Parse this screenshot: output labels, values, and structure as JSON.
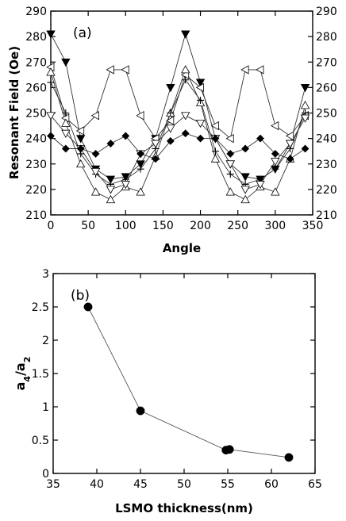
{
  "chart_data": [
    {
      "type": "line",
      "panel_label": "(a)",
      "xlabel": "Angle",
      "ylabel": "Resonant Field (Oe)",
      "xlim": [
        0,
        350
      ],
      "ylim": [
        210,
        290
      ],
      "x_ticks": [
        0,
        50,
        100,
        150,
        200,
        250,
        300,
        350
      ],
      "y_ticks": [
        210,
        220,
        230,
        240,
        250,
        260,
        270,
        280,
        290
      ],
      "right_axis_labels": true,
      "grid": false,
      "series": [
        {
          "marker": "filled-triangle-down",
          "x": [
            0,
            20,
            40,
            60,
            80,
            100,
            120,
            140,
            160,
            180,
            200,
            220,
            240,
            260,
            280,
            300,
            320,
            340
          ],
          "y": [
            281,
            270,
            240,
            228,
            224,
            225,
            230,
            240,
            260,
            281,
            262,
            240,
            230,
            225,
            224,
            228,
            238,
            260
          ]
        },
        {
          "marker": "open-triangle-left",
          "x": [
            0,
            20,
            40,
            60,
            80,
            100,
            120,
            140,
            160,
            180,
            200,
            220,
            240,
            260,
            280,
            300,
            320,
            340
          ],
          "y": [
            268,
            248,
            243,
            249,
            267,
            267,
            249,
            240,
            247,
            265,
            260,
            245,
            240,
            267,
            267,
            245,
            241,
            249
          ]
        },
        {
          "marker": "open-triangle-up",
          "x": [
            0,
            20,
            40,
            60,
            80,
            100,
            120,
            140,
            160,
            180,
            200,
            220,
            240,
            260,
            280,
            300,
            320,
            340
          ],
          "y": [
            266,
            246,
            230,
            219,
            216,
            221,
            219,
            233,
            250,
            267,
            254,
            232,
            219,
            216,
            221,
            219,
            232,
            253
          ]
        },
        {
          "marker": "plus",
          "x": [
            0,
            20,
            40,
            60,
            80,
            100,
            120,
            140,
            160,
            180,
            200,
            220,
            240,
            260,
            280,
            300,
            320,
            340
          ],
          "y": [
            262,
            250,
            234,
            226,
            222,
            224,
            228,
            236,
            250,
            263,
            255,
            235,
            226,
            222,
            224,
            228,
            236,
            250
          ]
        },
        {
          "marker": "open-triangle-down",
          "x": [
            0,
            20,
            40,
            60,
            80,
            100,
            120,
            140,
            160,
            180,
            200,
            220,
            240,
            260,
            280,
            300,
            320,
            340
          ],
          "y": [
            249,
            242,
            236,
            227,
            220,
            222,
            234,
            238,
            244,
            249,
            246,
            240,
            230,
            220,
            222,
            231,
            238,
            248
          ]
        },
        {
          "marker": "filled-diamond",
          "x": [
            0,
            20,
            40,
            60,
            80,
            100,
            120,
            140,
            160,
            180,
            200,
            220,
            240,
            260,
            280,
            300,
            320,
            340
          ],
          "y": [
            241,
            236,
            236,
            234,
            238,
            241,
            234,
            232,
            239,
            242,
            240,
            240,
            234,
            236,
            240,
            234,
            232,
            236
          ]
        }
      ]
    },
    {
      "type": "line",
      "panel_label": "(b)",
      "xlabel": "LSMO thickness(nm)",
      "ylabel": "a4/a2",
      "ylabel_main": "a",
      "ylabel_sub1": "4",
      "ylabel_slash": "/a",
      "ylabel_sub2": "2",
      "xlim": [
        35,
        65
      ],
      "ylim": [
        0,
        3
      ],
      "x_ticks": [
        35,
        40,
        45,
        50,
        55,
        60,
        65
      ],
      "y_ticks": [
        0,
        0.5,
        1,
        1.5,
        2,
        2.5,
        3
      ],
      "grid": false,
      "series": [
        {
          "marker": "filled-circle",
          "x": [
            39,
            45,
            54.8,
            55.2,
            62
          ],
          "y": [
            2.5,
            0.94,
            0.35,
            0.36,
            0.24
          ]
        }
      ]
    }
  ]
}
